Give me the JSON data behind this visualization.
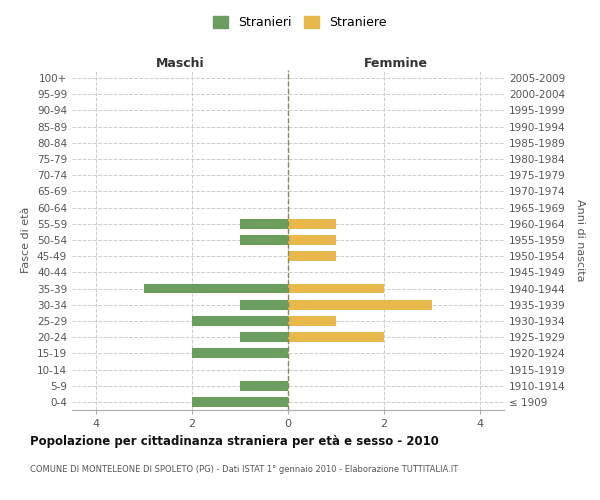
{
  "age_groups": [
    "100+",
    "95-99",
    "90-94",
    "85-89",
    "80-84",
    "75-79",
    "70-74",
    "65-69",
    "60-64",
    "55-59",
    "50-54",
    "45-49",
    "40-44",
    "35-39",
    "30-34",
    "25-29",
    "20-24",
    "15-19",
    "10-14",
    "5-9",
    "0-4"
  ],
  "birth_years": [
    "≤ 1909",
    "1910-1914",
    "1915-1919",
    "1920-1924",
    "1925-1929",
    "1930-1934",
    "1935-1939",
    "1940-1944",
    "1945-1949",
    "1950-1954",
    "1955-1959",
    "1960-1964",
    "1965-1969",
    "1970-1974",
    "1975-1979",
    "1980-1984",
    "1985-1989",
    "1990-1994",
    "1995-1999",
    "2000-2004",
    "2005-2009"
  ],
  "maschi": [
    0,
    0,
    0,
    0,
    0,
    0,
    0,
    0,
    0,
    1,
    1,
    0,
    0,
    3,
    1,
    2,
    1,
    2,
    0,
    1,
    2
  ],
  "femmine": [
    0,
    0,
    0,
    0,
    0,
    0,
    0,
    0,
    0,
    1,
    1,
    1,
    0,
    2,
    3,
    1,
    2,
    0,
    0,
    0,
    0
  ],
  "color_maschi": "#6b9e5e",
  "color_femmine": "#e8b84b",
  "title_main": "Popolazione per cittadinanza straniera per età e sesso - 2010",
  "title_sub": "COMUNE DI MONTELEONE DI SPOLETO (PG) - Dati ISTAT 1° gennaio 2010 - Elaborazione TUTTITALIA.IT",
  "label_maschi": "Maschi",
  "label_femmine": "Femmine",
  "ylabel_left": "Fasce di età",
  "ylabel_right": "Anni di nascita",
  "legend_maschi": "Stranieri",
  "legend_femmine": "Straniere",
  "xlim": 4.5,
  "bg_color": "#ffffff",
  "grid_color": "#cccccc",
  "vline_color": "#888855"
}
